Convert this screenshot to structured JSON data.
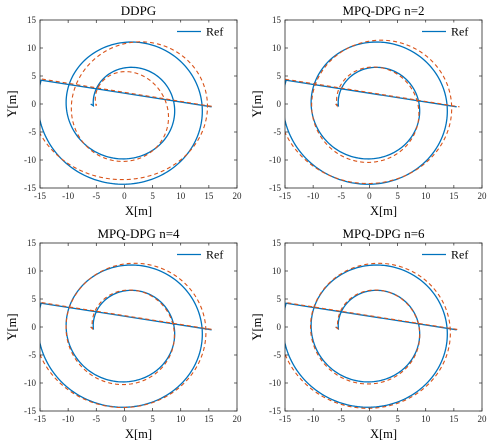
{
  "figure": {
    "legend_ref_label": "Ref",
    "xlabel": "X[m]",
    "ylabel": "Y[m]"
  },
  "colors": {
    "ref_line": "#0072BD",
    "agent_line": "#D95319",
    "axes": "#262626"
  },
  "chart_data": [
    {
      "type": "line",
      "title": "DDPG",
      "xlabel": "X[m]",
      "ylabel": "Y[m]",
      "xlim": [
        -15,
        20
      ],
      "ylim": [
        -15,
        15
      ],
      "xticks": [
        -15,
        -10,
        -5,
        0,
        5,
        10,
        15,
        20
      ],
      "yticks": [
        -15,
        -10,
        -5,
        0,
        5,
        10,
        15
      ],
      "legend": {
        "entries": [
          "Ref"
        ],
        "placement": "top-right"
      },
      "series": [
        {
          "name": "Ref",
          "style": "solid",
          "spiral": {
            "start_x": -6,
            "end_x": 15.5,
            "end_y": -0.5,
            "turns": 2
          }
        },
        {
          "style": "dashed",
          "spiral": {
            "start_x": -5,
            "end_x": 16,
            "end_y": -0.5,
            "turns": 2
          },
          "deviation": 1.2
        }
      ]
    },
    {
      "type": "line",
      "title": "MPQ-DPG n=2",
      "xlabel": "X[m]",
      "ylabel": "Y[m]",
      "xlim": [
        -15,
        20
      ],
      "ylim": [
        -15,
        15
      ],
      "xticks": [
        -15,
        -10,
        -5,
        0,
        5,
        10,
        15,
        20
      ],
      "yticks": [
        -15,
        -10,
        -5,
        0,
        5,
        10,
        15
      ],
      "legend": {
        "entries": [
          "Ref"
        ],
        "placement": "top-right"
      },
      "series": [
        {
          "name": "Ref",
          "style": "solid",
          "spiral": {
            "start_x": -6,
            "end_x": 15.5,
            "end_y": -0.5,
            "turns": 2
          }
        },
        {
          "style": "dashed",
          "spiral": {
            "start_x": -6,
            "end_x": 16,
            "end_y": -0.5,
            "turns": 2
          },
          "deviation": 0.6
        }
      ]
    },
    {
      "type": "line",
      "title": "MPQ-DPG n=4",
      "xlabel": "X[m]",
      "ylabel": "Y[m]",
      "xlim": [
        -15,
        20
      ],
      "ylim": [
        -15,
        15
      ],
      "xticks": [
        -15,
        -10,
        -5,
        0,
        5,
        10,
        15,
        20
      ],
      "yticks": [
        -15,
        -10,
        -5,
        0,
        5,
        10,
        15
      ],
      "legend": {
        "entries": [
          "Ref"
        ],
        "placement": "top-right"
      },
      "series": [
        {
          "name": "Ref",
          "style": "solid",
          "spiral": {
            "start_x": -6,
            "end_x": 15.5,
            "end_y": -0.5,
            "turns": 2
          }
        },
        {
          "style": "dashed",
          "spiral": {
            "start_x": -6,
            "end_x": 16,
            "end_y": -0.5,
            "turns": 2
          },
          "deviation": 0.4
        }
      ]
    },
    {
      "type": "line",
      "title": "MPQ-DPG n=6",
      "xlabel": "X[m]",
      "ylabel": "Y[m]",
      "xlim": [
        -15,
        20
      ],
      "ylim": [
        -15,
        15
      ],
      "xticks": [
        -15,
        -10,
        -5,
        0,
        5,
        10,
        15,
        20
      ],
      "yticks": [
        -15,
        -10,
        -5,
        0,
        5,
        10,
        15
      ],
      "legend": {
        "entries": [
          "Ref"
        ],
        "placement": "top-right"
      },
      "series": [
        {
          "name": "Ref",
          "style": "solid",
          "spiral": {
            "start_x": -6,
            "end_x": 15.5,
            "end_y": -0.5,
            "turns": 2
          }
        },
        {
          "style": "dashed",
          "spiral": {
            "start_x": -6,
            "end_x": 16,
            "end_y": -0.5,
            "turns": 2
          },
          "deviation": 0.25
        }
      ]
    }
  ]
}
